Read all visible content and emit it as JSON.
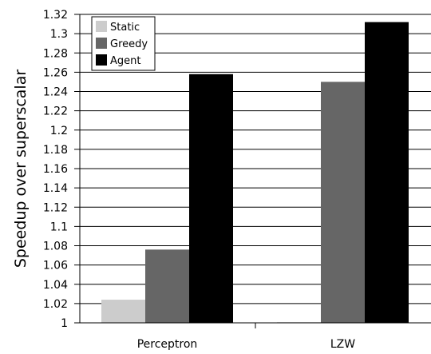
{
  "chart_data": {
    "type": "bar",
    "title": "",
    "xlabel": "",
    "ylabel": "Speedup over superscalar",
    "categories": [
      "Perceptron",
      "LZW"
    ],
    "series": [
      {
        "name": "Static",
        "values": [
          1.024,
          1.0
        ],
        "color": "#cccccc"
      },
      {
        "name": "Greedy",
        "values": [
          1.076,
          1.25
        ],
        "color": "#666666"
      },
      {
        "name": "Agent",
        "values": [
          1.258,
          1.312
        ],
        "color": "#000000"
      }
    ],
    "ylim": [
      1.0,
      1.32
    ],
    "yticks": [
      "1",
      "1.02",
      "1.04",
      "1.06",
      "1.08",
      "1.1",
      "1.12",
      "1.14",
      "1.16",
      "1.18",
      "1.2",
      "1.22",
      "1.24",
      "1.26",
      "1.28",
      "1.3",
      "1.32"
    ],
    "grid": true,
    "legend_position": "top-left"
  }
}
